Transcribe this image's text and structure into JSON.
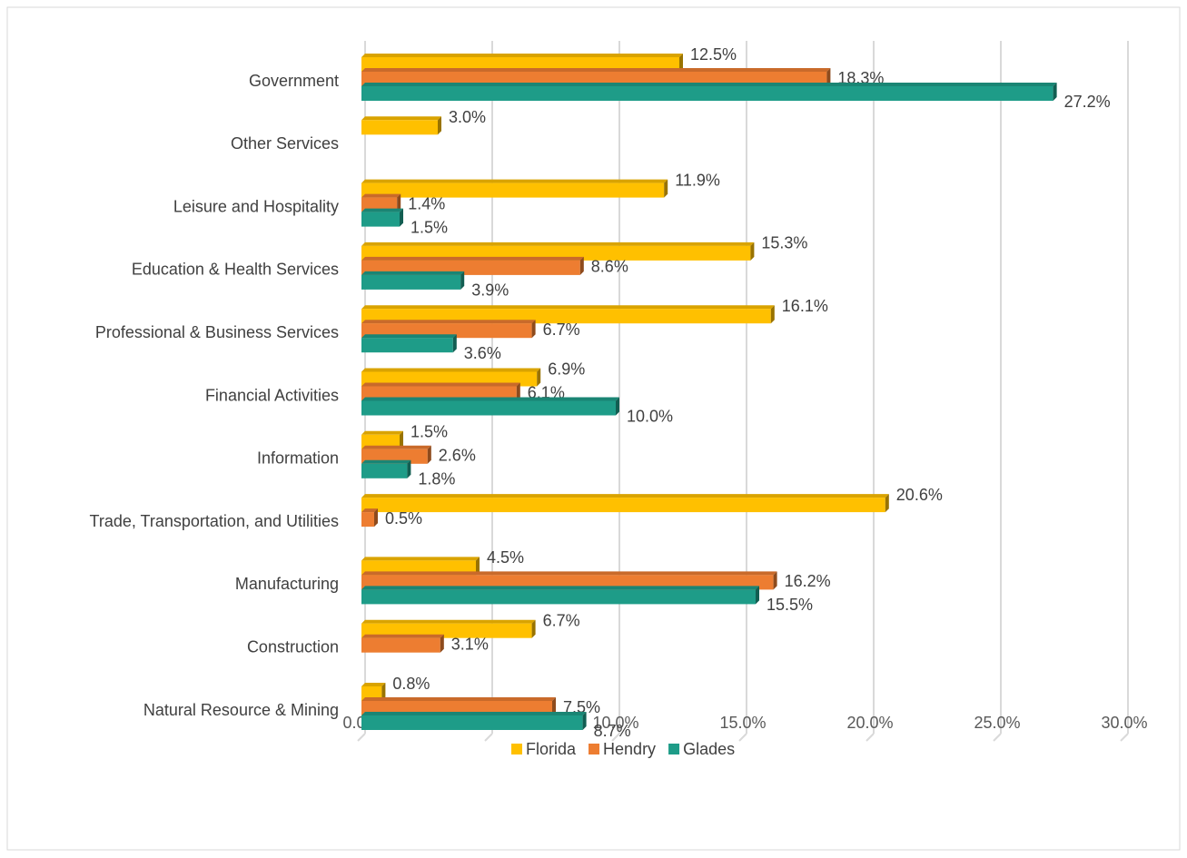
{
  "chart_data": {
    "type": "bar",
    "orientation": "horizontal",
    "categories": [
      "Government",
      "Other Services",
      "Leisure and Hospitality",
      "Education & Health Services",
      "Professional & Business Services",
      "Financial Activities",
      "Information",
      "Trade, Transportation, and Utilities",
      "Manufacturing",
      "Construction",
      "Natural Resource & Mining"
    ],
    "series": [
      {
        "name": "Florida",
        "color": "#FFC000",
        "values": [
          12.5,
          3.0,
          11.9,
          15.3,
          16.1,
          6.9,
          1.5,
          20.6,
          4.5,
          6.7,
          0.8
        ],
        "value_labels": [
          "12.5%",
          "3.0%",
          "11.9%",
          "15.3%",
          "16.1%",
          "6.9%",
          "1.5%",
          "20.6%",
          "4.5%",
          "6.7%",
          "0.8%"
        ]
      },
      {
        "name": "Hendry",
        "color": "#ED7D31",
        "values": [
          18.3,
          null,
          1.4,
          8.6,
          6.7,
          6.1,
          2.6,
          0.5,
          16.2,
          3.1,
          7.5
        ],
        "value_labels": [
          "18.3%",
          null,
          "1.4%",
          "8.6%",
          "6.7%",
          "6.1%",
          "2.6%",
          "0.5%",
          "16.2%",
          "3.1%",
          "7.5%"
        ]
      },
      {
        "name": "Glades",
        "color": "#1E9C88",
        "values": [
          27.2,
          null,
          1.5,
          3.9,
          3.6,
          10.0,
          1.8,
          null,
          15.5,
          null,
          8.7
        ],
        "value_labels": [
          "27.2%",
          null,
          "1.5%",
          "3.9%",
          "3.6%",
          "10.0%",
          "1.8%",
          null,
          "15.5%",
          null,
          "8.7%"
        ]
      }
    ],
    "xlim": [
      0,
      30
    ],
    "xticks": [
      {
        "value": 0,
        "label": "0.0%"
      },
      {
        "value": 5,
        "label": "5.0%"
      },
      {
        "value": 10,
        "label": "10.0%"
      },
      {
        "value": 15,
        "label": "15.0%"
      },
      {
        "value": 20,
        "label": "20.0%"
      },
      {
        "value": 25,
        "label": "25.0%"
      },
      {
        "value": 30,
        "label": "30.0%"
      }
    ],
    "grid": true,
    "legend": "bottom"
  }
}
